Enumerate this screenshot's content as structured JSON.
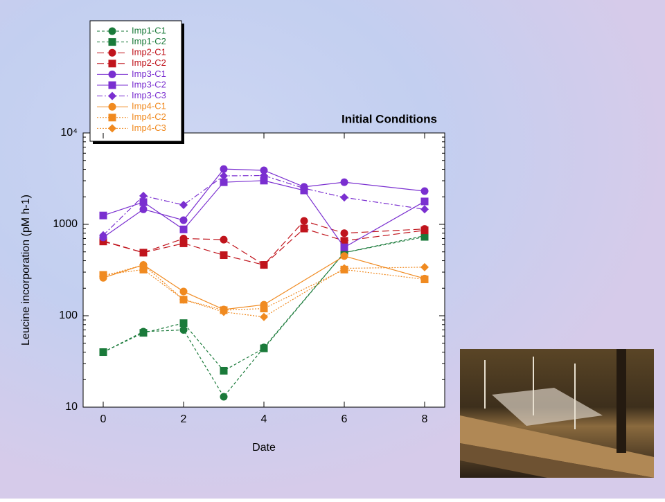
{
  "chart_data": {
    "type": "line",
    "title": "Initial Conditions",
    "x_label": "Date",
    "y_label": "Leucine incorporation (pM h-1)",
    "log_y": true,
    "xlim": [
      -0.5,
      8.5
    ],
    "ylim": [
      10,
      10000
    ],
    "xticks": [
      0,
      2,
      4,
      6,
      8
    ],
    "yticks": [
      10,
      100,
      1000,
      {
        "value": 10000,
        "label": "10⁴"
      }
    ],
    "legend": "top-left",
    "series": [
      {
        "name": "Imp1-C1",
        "color": "#1a7a3a",
        "marker": "circle",
        "dash": "4,3",
        "x": [
          0,
          1,
          2,
          3,
          4,
          6,
          8
        ],
        "values": [
          40,
          67,
          70,
          13,
          45,
          490,
          750
        ]
      },
      {
        "name": "Imp1-C2",
        "color": "#1a7a3a",
        "marker": "square",
        "dash": "4,3",
        "x": [
          0,
          1,
          2,
          3,
          4,
          6,
          8
        ],
        "values": [
          40,
          65,
          83,
          25,
          44,
          490,
          730
        ]
      },
      {
        "name": "Imp2-C1",
        "color": "#c0141c",
        "marker": "circle",
        "dash": "10,5",
        "x": [
          0,
          1,
          2,
          3,
          4,
          5,
          6,
          8
        ],
        "values": [
          660,
          490,
          700,
          680,
          360,
          1090,
          800,
          890
        ]
      },
      {
        "name": "Imp2-C2",
        "color": "#c0141c",
        "marker": "square",
        "dash": "10,5",
        "x": [
          0,
          1,
          2,
          3,
          4,
          5,
          6,
          8
        ],
        "values": [
          650,
          490,
          620,
          460,
          360,
          900,
          660,
          860
        ]
      },
      {
        "name": "Imp3-C1",
        "color": "#7a2fd0",
        "marker": "circle",
        "dash": "none",
        "x": [
          0,
          1,
          2,
          3,
          4,
          5,
          6,
          8
        ],
        "values": [
          720,
          1460,
          1110,
          4030,
          3900,
          2570,
          2890,
          2310
        ]
      },
      {
        "name": "Imp3-C2",
        "color": "#7a2fd0",
        "marker": "square",
        "dash": "none",
        "x": [
          0,
          1,
          2,
          3,
          4,
          5,
          6,
          8
        ],
        "values": [
          1250,
          1750,
          880,
          2890,
          3010,
          2350,
          560,
          1780
        ]
      },
      {
        "name": "Imp3-C3",
        "color": "#7a2fd0",
        "marker": "diamond",
        "dash": "8,3,2,3",
        "x": [
          0,
          1,
          2,
          3,
          4,
          5,
          6,
          8
        ],
        "values": [
          760,
          2050,
          1630,
          3390,
          3420,
          2480,
          1970,
          1460
        ]
      },
      {
        "name": "Imp4-C1",
        "color": "#f08a20",
        "marker": "circle",
        "dash": "none",
        "x": [
          0,
          1,
          2,
          3,
          4,
          6,
          8
        ],
        "values": [
          260,
          360,
          184,
          117,
          132,
          450,
          255
        ]
      },
      {
        "name": "Imp4-C2",
        "color": "#f08a20",
        "marker": "square",
        "dash": "2,2",
        "x": [
          0,
          1,
          2,
          3,
          4,
          6,
          8
        ],
        "values": [
          280,
          320,
          150,
          115,
          120,
          320,
          250
        ]
      },
      {
        "name": "Imp4-C3",
        "color": "#f08a20",
        "marker": "diamond",
        "dash": "2,2",
        "x": [
          0,
          1,
          2,
          3,
          4,
          6,
          8
        ],
        "values": [
          270,
          360,
          150,
          110,
          97,
          330,
          340
        ]
      }
    ]
  }
}
